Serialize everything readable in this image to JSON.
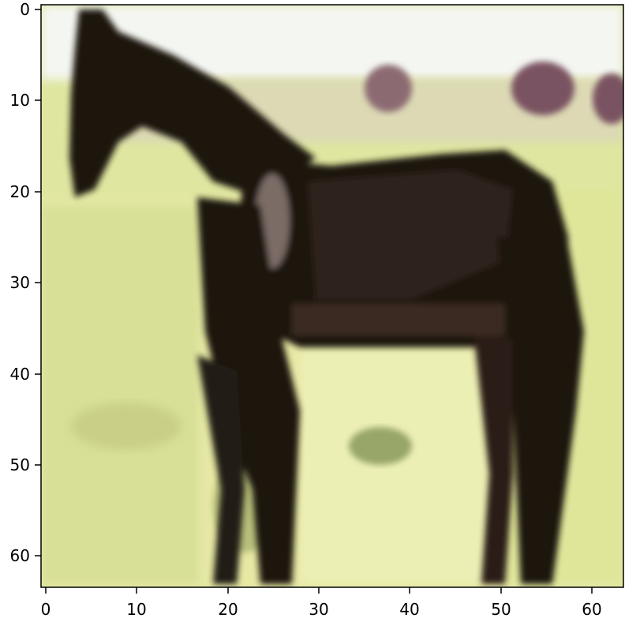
{
  "image": {
    "subject": "horse",
    "colors": {
      "sky": "#f4f6f2",
      "grass_light": "#e6e8a4",
      "grass_mid": "#cbd486",
      "grass_dark": "#9aa86a",
      "horse_dark": "#1a120e",
      "horse_mid": "#3a2a22",
      "horse_highlight": "#7c6c66",
      "blob_purple": "#8c6a72"
    }
  },
  "axes": {
    "x_ticks": [
      "0",
      "10",
      "20",
      "30",
      "40",
      "50",
      "60"
    ],
    "y_ticks": [
      "0",
      "10",
      "20",
      "30",
      "40",
      "50",
      "60"
    ],
    "x_range": [
      0,
      64
    ],
    "y_range": [
      0,
      64
    ]
  }
}
